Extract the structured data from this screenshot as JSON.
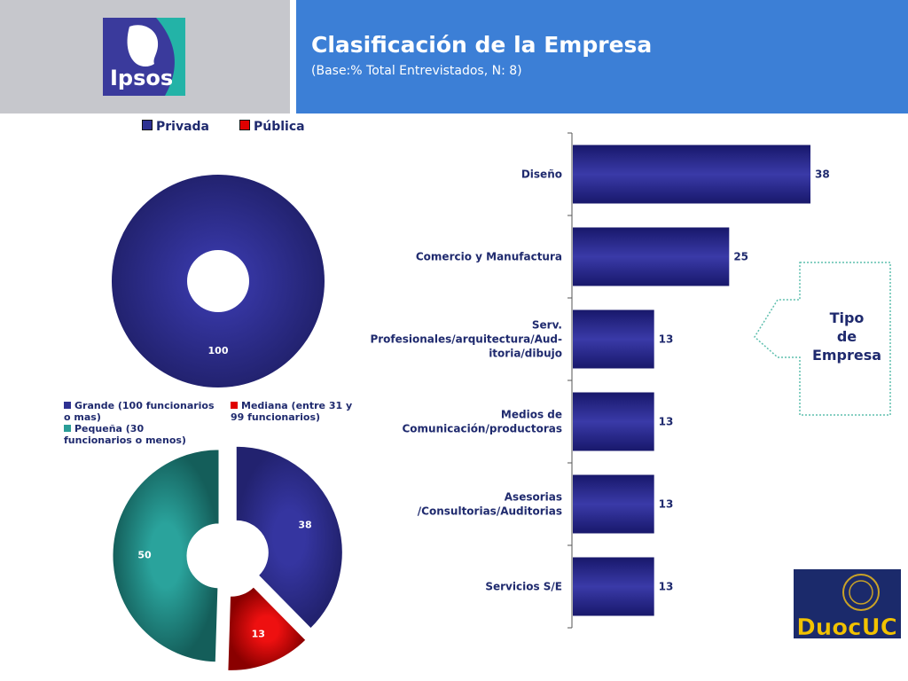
{
  "header": {
    "logo_text": "Ipsos",
    "title": "Clasificación de la Empresa",
    "subtitle": "(Base:% Total Entrevistados, N: 8)"
  },
  "callout": {
    "lines": [
      "Tipo",
      "de",
      "Empresa"
    ]
  },
  "footer_logo": {
    "text": "DuocUC"
  },
  "colors": {
    "navy": "#2e3192",
    "red": "#e00000",
    "teal": "#2a9d97",
    "header_blue": "#3c7fd6",
    "header_gray": "#c6c7cc",
    "label": "#1f2a6e",
    "callout_border": "#5fbfae"
  },
  "chart_data": [
    {
      "type": "pie",
      "variant": "donut",
      "legend_position": "top",
      "legend": [
        "Privada",
        "Pública"
      ],
      "slices": [
        {
          "label": "Privada",
          "value": 100,
          "color": "#2e3192"
        },
        {
          "label": "Pública",
          "value": 0,
          "color": "#e00000"
        }
      ],
      "data_labels": [
        "100"
      ]
    },
    {
      "type": "pie",
      "variant": "donut",
      "legend_position": "top",
      "legend": [
        "Grande (100 funcionarios o mas)",
        "Mediana (entre 31 y 99 funcionarios)",
        "Pequeña (30 funcionarios o menos)"
      ],
      "slices": [
        {
          "label": "Grande (100 funcionarios o mas)",
          "value": 38,
          "color": "#2e3192"
        },
        {
          "label": "Mediana (entre 31 y 99 funcionarios)",
          "value": 13,
          "color": "#e00000"
        },
        {
          "label": "Pequeña (30 funcionarios o menos)",
          "value": 50,
          "color": "#2a9d97"
        }
      ]
    },
    {
      "type": "bar",
      "orientation": "horizontal",
      "categories": [
        "Diseño",
        "Comercio y Manufactura",
        "Serv. Profesionales/arquitectura/Auditoria/dibujo",
        "Medios de Comunicación/productoras",
        "Asesorias /Consultorias/Auditorias",
        "Servicios S/E"
      ],
      "category_lines": [
        [
          "Diseño"
        ],
        [
          "Comercio y Manufactura"
        ],
        [
          "Serv.",
          "Profesionales/arquitectura/Aud-",
          "itoria/dibujo"
        ],
        [
          "Medios de",
          "Comunicación/productoras"
        ],
        [
          "Asesorias",
          "/Consultorias/Auditorias"
        ],
        [
          "Servicios S/E"
        ]
      ],
      "values": [
        38,
        25,
        13,
        13,
        13,
        13
      ],
      "xlim": [
        0,
        38
      ],
      "grid": false
    }
  ]
}
